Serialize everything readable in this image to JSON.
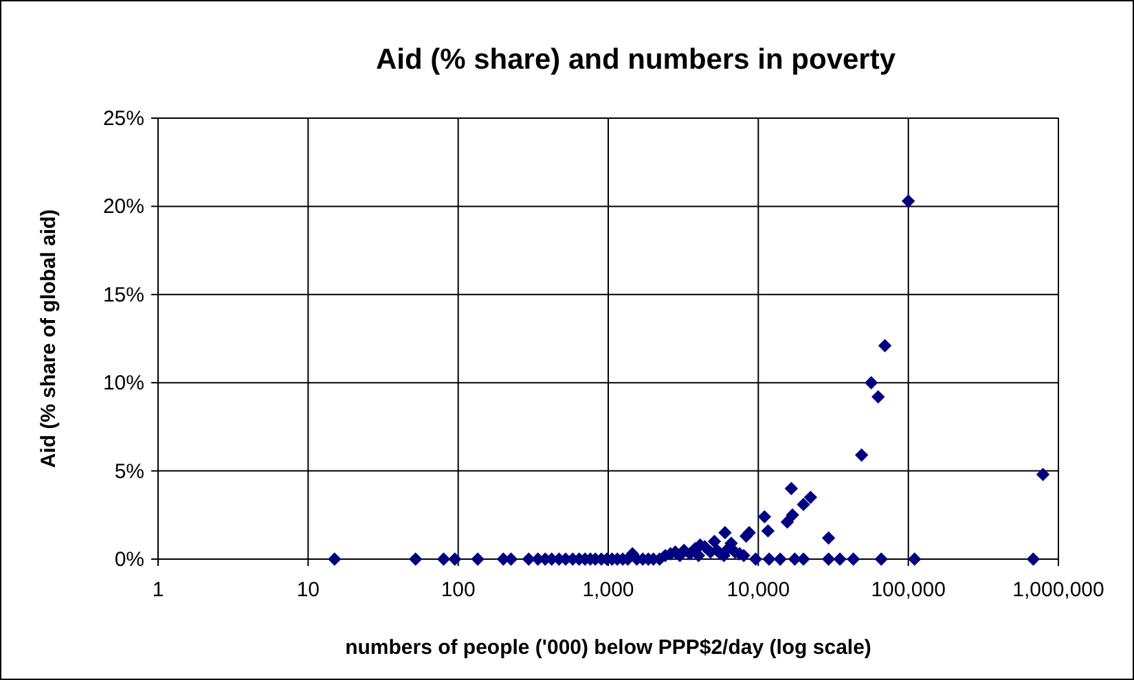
{
  "chart_data": {
    "type": "scatter",
    "title": "Aid (% share) and numbers in poverty",
    "xlabel": "numbers of people ('000) below PPP$2/day (log scale)",
    "ylabel": "Aid (% share of global aid)",
    "log": "x",
    "grid": true,
    "marker": "diamond",
    "xlim": [
      1,
      1000000
    ],
    "xticks": [
      1,
      10,
      100,
      {
        "value": 1000,
        "label": "1,000"
      },
      {
        "value": 10000,
        "label": "10,000"
      },
      {
        "value": 100000,
        "label": "100,000"
      },
      {
        "value": 1000000,
        "label": "1,000,000"
      }
    ],
    "ylim": [
      0,
      25
    ],
    "yticks": [
      {
        "value": 0,
        "label": "0%"
      },
      {
        "value": 5,
        "label": "5%"
      },
      {
        "value": 10,
        "label": "10%"
      },
      {
        "value": 15,
        "label": "15%"
      },
      {
        "value": 20,
        "label": "20%"
      },
      {
        "value": 25,
        "label": "25%"
      }
    ],
    "series": [
      {
        "color": "#000080",
        "x": [
          15,
          52,
          80,
          95,
          135,
          200,
          225,
          295,
          340,
          380,
          420,
          470,
          520,
          580,
          640,
          700,
          760,
          820,
          900,
          980,
          1060,
          1150,
          1250,
          1350,
          1450,
          1550,
          1700,
          1850,
          2000,
          2200,
          2400,
          2600,
          2800,
          3000,
          3200,
          3500,
          3800,
          4000,
          4400,
          4800,
          5300,
          5600,
          5900,
          6300,
          7000,
          7500,
          8000,
          9600,
          11800,
          14000,
          17500,
          20000,
          29400,
          35000,
          43000,
          66000,
          110000,
          680000,
          100000,
          69800,
          56600,
          62900,
          48800,
          789000,
          29400,
          16600,
          22300,
          20000,
          16900,
          15600,
          11000,
          11600,
          8700,
          8300,
          6600,
          6000,
          5100,
          4100
        ],
        "values": [
          0,
          0,
          0,
          0,
          0,
          0,
          0,
          0,
          0,
          0,
          0,
          0,
          0,
          0,
          0,
          0,
          0,
          0,
          0,
          0,
          0,
          0,
          0,
          0,
          0.3,
          0,
          0,
          0,
          0,
          0,
          0.2,
          0.3,
          0.4,
          0.2,
          0.5,
          0.3,
          0.6,
          0.2,
          0.7,
          0.4,
          0.5,
          0.3,
          0.2,
          0.6,
          0.4,
          0.3,
          0.2,
          0,
          0,
          0,
          0,
          0,
          0,
          0,
          0,
          0,
          0,
          0,
          20.3,
          12.1,
          10,
          9.2,
          5.9,
          4.8,
          1.2,
          4,
          3.5,
          3.1,
          2.5,
          2.1,
          2.4,
          1.6,
          1.5,
          1.3,
          0.9,
          1.5,
          1,
          0.8
        ]
      }
    ]
  }
}
